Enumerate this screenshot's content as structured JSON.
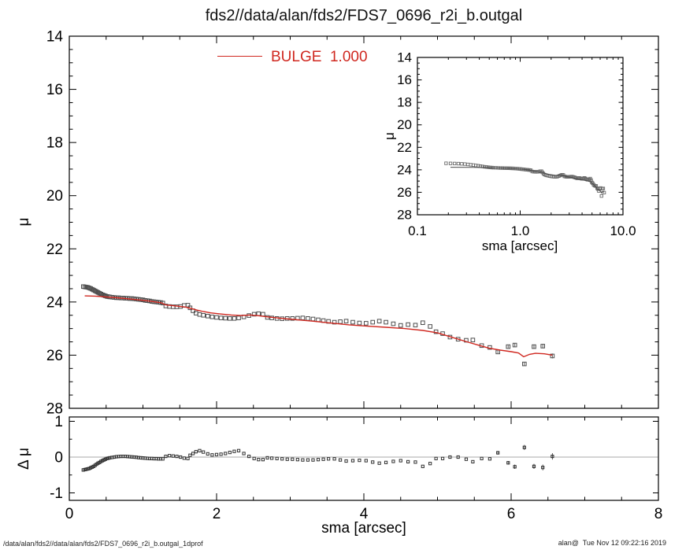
{
  "title": "fds2//data/alan/fds2/FDS7_0696_r2i_b.outgal",
  "legend": {
    "label": "BULGE  1.000",
    "color": "#d02820"
  },
  "footer": {
    "left": "/data/alan/fds2//data/alan/fds2/FDS7_0696_r2i_b.outgal_1dprof",
    "right": "alan@  Tue Nov 12 09:22:16 2019"
  },
  "colors": {
    "model": "#d02820",
    "data_marker": "#4d4d4d",
    "inset_marker": "#6b6b6b",
    "inset_line": "#4a4a4a",
    "residual_marker": "#303030",
    "zero_line": "#a9a9a9",
    "frame": "#000000"
  },
  "chart_data": [
    {
      "id": "main-profile",
      "type": "scatter",
      "xlabel": "sma [arcsec]",
      "ylabel": "μ",
      "xlim": [
        0,
        8
      ],
      "ylim": [
        28,
        14
      ],
      "y_inverted": true,
      "grid": false,
      "xticks": [
        0,
        2,
        4,
        6,
        8
      ],
      "yticks": [
        14,
        16,
        18,
        20,
        22,
        24,
        26,
        28
      ],
      "legend_entry": {
        "label": "BULGE  1.000",
        "position": "top-center"
      },
      "series": [
        {
          "name": "profile-data",
          "marker": "open-square",
          "columns": [
            "sma_arcsec",
            "mu",
            "delta_mu",
            "err_optional"
          ],
          "points": [
            [
              0.19,
              23.42,
              -0.36
            ],
            [
              0.21,
              23.43,
              -0.35
            ],
            [
              0.23,
              23.44,
              -0.34
            ],
            [
              0.25,
              23.45,
              -0.33
            ],
            [
              0.27,
              23.47,
              -0.32
            ],
            [
              0.29,
              23.49,
              -0.3
            ],
            [
              0.31,
              23.52,
              -0.28
            ],
            [
              0.33,
              23.55,
              -0.26
            ],
            [
              0.35,
              23.58,
              -0.23
            ],
            [
              0.37,
              23.61,
              -0.2
            ],
            [
              0.39,
              23.64,
              -0.17
            ],
            [
              0.41,
              23.67,
              -0.15
            ],
            [
              0.43,
              23.7,
              -0.12
            ],
            [
              0.45,
              23.73,
              -0.1
            ],
            [
              0.47,
              23.75,
              -0.08
            ],
            [
              0.49,
              23.77,
              -0.06
            ],
            [
              0.51,
              23.79,
              -0.04
            ],
            [
              0.53,
              23.8,
              -0.03
            ],
            [
              0.55,
              23.81,
              -0.02
            ],
            [
              0.58,
              23.82,
              -0.01
            ],
            [
              0.61,
              23.83,
              0.0
            ],
            [
              0.64,
              23.84,
              0.01
            ],
            [
              0.67,
              23.84,
              0.015
            ],
            [
              0.7,
              23.85,
              0.02
            ],
            [
              0.73,
              23.85,
              0.02
            ],
            [
              0.76,
              23.86,
              0.02
            ],
            [
              0.79,
              23.86,
              0.015
            ],
            [
              0.82,
              23.87,
              0.01
            ],
            [
              0.85,
              23.87,
              0.005
            ],
            [
              0.88,
              23.88,
              0.0
            ],
            [
              0.91,
              23.89,
              -0.005
            ],
            [
              0.94,
              23.9,
              -0.015
            ],
            [
              0.97,
              23.91,
              -0.02
            ],
            [
              1.0,
              23.92,
              -0.025
            ],
            [
              1.03,
              23.94,
              -0.03
            ],
            [
              1.06,
              23.95,
              -0.035
            ],
            [
              1.09,
              23.96,
              -0.04
            ],
            [
              1.12,
              23.98,
              -0.04
            ],
            [
              1.15,
              23.99,
              -0.045
            ],
            [
              1.18,
              24.0,
              -0.045
            ],
            [
              1.21,
              24.01,
              -0.05
            ],
            [
              1.24,
              24.02,
              -0.05
            ],
            [
              1.27,
              24.04,
              -0.05
            ],
            [
              1.31,
              24.15,
              0.02
            ],
            [
              1.36,
              24.17,
              0.04
            ],
            [
              1.41,
              24.18,
              0.03
            ],
            [
              1.46,
              24.18,
              0.02
            ],
            [
              1.51,
              24.17,
              0.0
            ],
            [
              1.56,
              24.13,
              -0.03
            ],
            [
              1.61,
              24.12,
              -0.04
            ],
            [
              1.64,
              24.22,
              0.05
            ],
            [
              1.68,
              24.33,
              0.1
            ],
            [
              1.72,
              24.42,
              0.15
            ],
            [
              1.77,
              24.47,
              0.18
            ],
            [
              1.82,
              24.5,
              0.14
            ],
            [
              1.88,
              24.53,
              0.09
            ],
            [
              1.94,
              24.56,
              0.06
            ],
            [
              2.0,
              24.58,
              0.07
            ],
            [
              2.06,
              24.6,
              0.08
            ],
            [
              2.12,
              24.61,
              0.1
            ],
            [
              2.18,
              24.62,
              0.13
            ],
            [
              2.24,
              24.62,
              0.16
            ],
            [
              2.3,
              24.6,
              0.18
            ],
            [
              2.37,
              24.56,
              0.1
            ],
            [
              2.44,
              24.51,
              0.02
            ],
            [
              2.51,
              24.46,
              -0.04
            ],
            [
              2.57,
              24.44,
              -0.07
            ],
            [
              2.63,
              24.46,
              -0.07
            ],
            [
              2.69,
              24.58,
              -0.02
            ],
            [
              2.75,
              24.6,
              -0.03
            ],
            [
              2.82,
              24.62,
              -0.04
            ],
            [
              2.89,
              24.63,
              -0.05
            ],
            [
              2.96,
              24.62,
              -0.06
            ],
            [
              3.03,
              24.62,
              -0.06
            ],
            [
              3.1,
              24.61,
              -0.07
            ],
            [
              3.17,
              24.6,
              -0.08
            ],
            [
              3.24,
              24.62,
              -0.08
            ],
            [
              3.31,
              24.64,
              -0.08
            ],
            [
              3.38,
              24.67,
              -0.07
            ],
            [
              3.45,
              24.7,
              -0.06
            ],
            [
              3.52,
              24.73,
              -0.05
            ],
            [
              3.6,
              24.76,
              -0.05
            ],
            [
              3.68,
              24.74,
              -0.08
            ],
            [
              3.76,
              24.72,
              -0.11
            ],
            [
              3.85,
              24.76,
              -0.1
            ],
            [
              3.94,
              24.79,
              -0.09
            ],
            [
              4.03,
              24.8,
              -0.1
            ],
            [
              4.12,
              24.76,
              -0.14
            ],
            [
              4.21,
              24.72,
              -0.17
            ],
            [
              4.3,
              24.76,
              -0.15
            ],
            [
              4.4,
              24.82,
              -0.12
            ],
            [
              4.5,
              24.88,
              -0.1
            ],
            [
              4.6,
              24.85,
              -0.13
            ],
            [
              4.7,
              24.87,
              -0.14
            ],
            [
              4.8,
              24.78,
              -0.26
            ],
            [
              4.9,
              24.92,
              -0.18
            ],
            [
              4.98,
              25.12,
              -0.04
            ],
            [
              5.07,
              25.19,
              -0.04
            ],
            [
              5.17,
              25.32,
              0.0
            ],
            [
              5.28,
              25.4,
              0.0
            ],
            [
              5.39,
              25.44,
              -0.06
            ],
            [
              5.48,
              25.43,
              -0.13
            ],
            [
              5.6,
              25.64,
              -0.04
            ],
            [
              5.71,
              25.71,
              -0.05
            ],
            [
              5.82,
              25.88,
              0.12,
              0.05
            ],
            [
              5.96,
              25.68,
              -0.16,
              0.05
            ],
            [
              6.05,
              25.62,
              -0.27,
              0.06
            ],
            [
              6.18,
              26.33,
              0.27,
              0.07
            ],
            [
              6.31,
              25.68,
              -0.26,
              0.07
            ],
            [
              6.43,
              25.66,
              -0.29,
              0.08
            ],
            [
              6.56,
              26.03,
              0.02,
              0.09
            ]
          ]
        },
        {
          "name": "bulge-model",
          "type": "line",
          "columns": [
            "sma_arcsec",
            "mu"
          ],
          "points": [
            [
              0.21,
              23.77
            ],
            [
              0.35,
              23.78
            ],
            [
              0.5,
              23.81
            ],
            [
              0.65,
              23.84
            ],
            [
              0.8,
              23.88
            ],
            [
              0.95,
              23.92
            ],
            [
              1.1,
              23.97
            ],
            [
              1.25,
              24.03
            ],
            [
              1.31,
              24.11
            ],
            [
              1.45,
              24.15
            ],
            [
              1.58,
              24.19
            ],
            [
              1.66,
              24.25
            ],
            [
              1.74,
              24.31
            ],
            [
              1.82,
              24.36
            ],
            [
              1.92,
              24.41
            ],
            [
              2.05,
              24.45
            ],
            [
              2.2,
              24.49
            ],
            [
              2.33,
              24.51
            ],
            [
              2.46,
              24.49
            ],
            [
              2.58,
              24.52
            ],
            [
              2.72,
              24.57
            ],
            [
              2.9,
              24.62
            ],
            [
              3.1,
              24.67
            ],
            [
              3.3,
              24.72
            ],
            [
              3.55,
              24.79
            ],
            [
              3.8,
              24.86
            ],
            [
              4.05,
              24.91
            ],
            [
              4.3,
              24.95
            ],
            [
              4.55,
              25.0
            ],
            [
              4.8,
              25.07
            ],
            [
              5.0,
              25.16
            ],
            [
              5.2,
              25.33
            ],
            [
              5.4,
              25.5
            ],
            [
              5.55,
              25.62
            ],
            [
              5.7,
              25.74
            ],
            [
              5.85,
              25.81
            ],
            [
              6.0,
              25.87
            ],
            [
              6.1,
              25.92
            ],
            [
              6.17,
              26.06
            ],
            [
              6.25,
              25.97
            ],
            [
              6.33,
              25.93
            ],
            [
              6.45,
              25.95
            ],
            [
              6.56,
              26.0
            ]
          ]
        }
      ]
    },
    {
      "id": "inset-log-profile",
      "type": "scatter",
      "xscale": "log",
      "xlabel": "sma [arcsec]",
      "ylabel": "μ",
      "xlim": [
        0.1,
        10
      ],
      "ylim": [
        28,
        14
      ],
      "y_inverted": true,
      "grid": false,
      "xticks": [
        0.1,
        1.0,
        10.0
      ],
      "xtick_labels": [
        "0.1",
        "1.0",
        "10.0"
      ],
      "yticks": [
        14,
        16,
        18,
        20,
        22,
        24,
        26,
        28
      ],
      "series_note": "same data and model as chart_data[0] plotted on log x-axis"
    },
    {
      "id": "residual-panel",
      "type": "scatter",
      "xlabel": "sma [arcsec]",
      "ylabel": "Δ μ",
      "xlim": [
        0,
        8
      ],
      "ylim": [
        -1,
        1
      ],
      "grid": false,
      "xticks": [
        0,
        2,
        4,
        6,
        8
      ],
      "yticks": [
        -1,
        0,
        1
      ],
      "zero_line": true,
      "series_note": "delta_mu values are column 3 of chart_data[0].series[0].points"
    }
  ]
}
